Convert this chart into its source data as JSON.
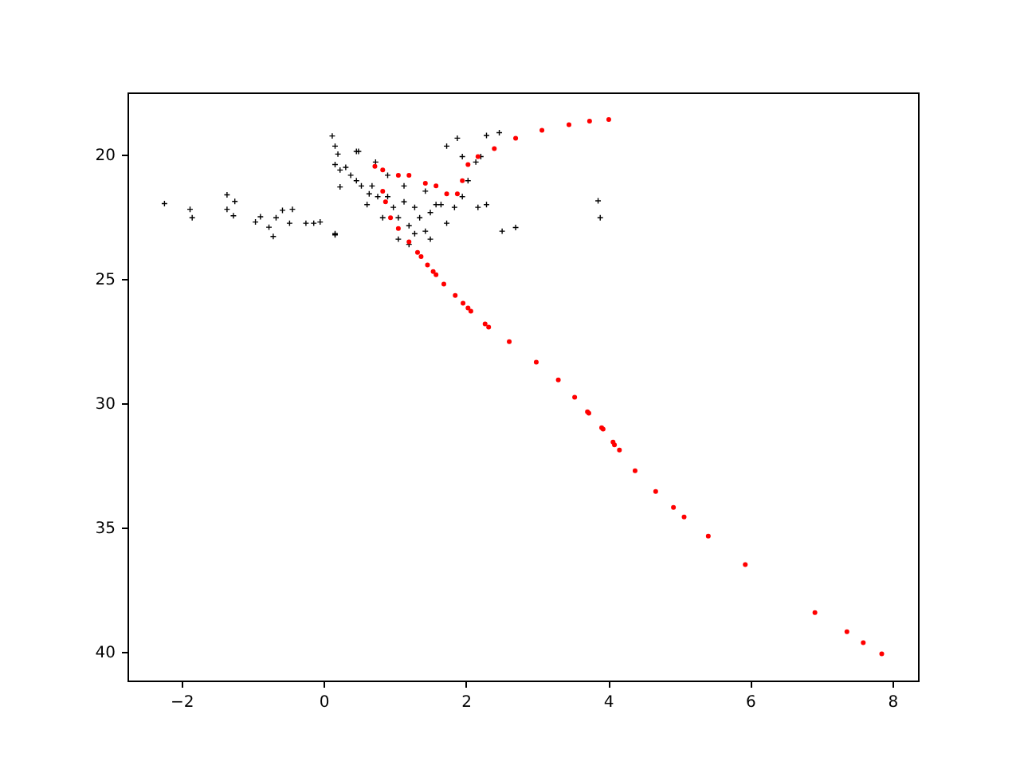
{
  "chart_data": {
    "type": "scatter",
    "xlim": [
      -2.76,
      8.36
    ],
    "ylim": [
      41.15,
      17.5
    ],
    "xticks": [
      -2,
      0,
      2,
      4,
      6,
      8
    ],
    "yticks": [
      20,
      25,
      30,
      35,
      40
    ],
    "grid": false,
    "series": [
      {
        "color": "#000000",
        "marker": "cross",
        "x": [
          -2.24,
          -1.88,
          -1.85,
          -1.36,
          -1.25,
          -1.36,
          -1.27,
          -0.96,
          -0.89,
          -0.77,
          -0.71,
          -0.67,
          -0.58,
          -0.48,
          -0.44,
          -0.25,
          -0.14,
          -0.05,
          0.16,
          0.12,
          0.16,
          0.2,
          0.16,
          0.23,
          0.49,
          0.38,
          0.31,
          0.23,
          0.53,
          0.64,
          0.73,
          0.46,
          1.73,
          1.88,
          1.95,
          2.29,
          2.47,
          2.17,
          2.29,
          2.51,
          2.7,
          3.86,
          3.89,
          1.73,
          1.58,
          1.5,
          1.13,
          1.43,
          1.65,
          1.84,
          1.95,
          2.03,
          2.14,
          2.21,
          0.9,
          0.98,
          1.05,
          1.2,
          1.28,
          1.13,
          1.28,
          1.35,
          0.76,
          0.68,
          0.61,
          0.46,
          0.83,
          1.43,
          1.5,
          1.05,
          1.2,
          0.9,
          0.16
        ],
        "values": [
          21.97,
          22.2,
          22.54,
          21.62,
          21.88,
          22.2,
          22.46,
          22.71,
          22.5,
          22.92,
          23.29,
          22.54,
          22.24,
          22.76,
          22.2,
          22.76,
          22.76,
          22.71,
          23.23,
          19.25,
          19.66,
          19.98,
          20.4,
          20.62,
          19.87,
          20.83,
          20.51,
          21.3,
          21.26,
          21.58,
          20.3,
          19.87,
          19.66,
          19.34,
          20.08,
          19.23,
          19.12,
          22.12,
          22.01,
          23.08,
          22.93,
          21.86,
          22.54,
          22.76,
          22.01,
          22.33,
          21.26,
          21.47,
          22.01,
          22.12,
          21.69,
          21.05,
          20.3,
          20.08,
          21.69,
          22.12,
          22.54,
          22.86,
          23.18,
          21.9,
          22.12,
          22.54,
          21.69,
          21.26,
          22.01,
          21.05,
          22.54,
          23.08,
          23.4,
          23.4,
          23.61,
          20.83,
          23.18
        ]
      },
      {
        "color": "#ff0000",
        "marker": "circle",
        "x": [
          0.72,
          0.83,
          1.05,
          1.2,
          1.43,
          1.58,
          1.73,
          1.88,
          1.95,
          2.03,
          2.17,
          2.4,
          2.7,
          3.07,
          3.45,
          3.74,
          4.01,
          0.83,
          0.87,
          0.94,
          1.05,
          1.2,
          1.32,
          1.37,
          1.46,
          1.54,
          1.58,
          1.69,
          1.85,
          1.96,
          2.03,
          2.07,
          2.27,
          2.32,
          2.61,
          2.99,
          3.3,
          3.53,
          3.71,
          3.73,
          3.91,
          3.93,
          4.07,
          4.09,
          4.16,
          4.38,
          4.67,
          4.92,
          5.07,
          5.41,
          5.93,
          6.91,
          7.36,
          7.59,
          7.85
        ],
        "values": [
          20.47,
          20.62,
          20.83,
          20.83,
          21.15,
          21.26,
          21.58,
          21.58,
          21.05,
          20.4,
          20.08,
          19.76,
          19.34,
          19.02,
          18.8,
          18.65,
          18.59,
          21.47,
          21.9,
          22.54,
          22.97,
          23.51,
          23.93,
          24.1,
          24.44,
          24.7,
          24.83,
          25.21,
          25.66,
          25.98,
          26.17,
          26.3,
          26.81,
          26.94,
          27.52,
          28.35,
          29.06,
          29.76,
          30.34,
          30.4,
          30.98,
          31.04,
          31.56,
          31.67,
          31.88,
          32.71,
          33.55,
          34.19,
          34.57,
          35.34,
          36.49,
          38.42,
          39.19,
          39.63,
          40.08
        ]
      }
    ]
  }
}
